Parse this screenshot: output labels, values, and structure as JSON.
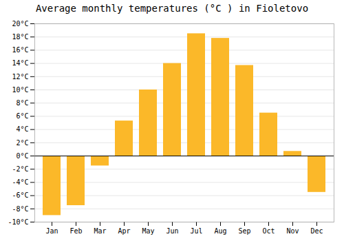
{
  "chart_data": {
    "type": "bar",
    "title": "Average monthly temperatures (°C ) in Fioletovo",
    "categories": [
      "Jan",
      "Feb",
      "Mar",
      "Apr",
      "May",
      "Jun",
      "Jul",
      "Aug",
      "Sep",
      "Oct",
      "Nov",
      "Dec"
    ],
    "values": [
      -9,
      -7.5,
      -1.5,
      5.3,
      10,
      14,
      18.5,
      17.8,
      13.7,
      6.5,
      0.7,
      -5.5
    ],
    "color": "#FBB829",
    "ylim": [
      -10,
      20
    ],
    "yticks": [
      {
        "value": -10,
        "label": "-10°C"
      },
      {
        "value": -8,
        "label": "-8°C"
      },
      {
        "value": -6,
        "label": "-6°C"
      },
      {
        "value": -4,
        "label": "-4°C"
      },
      {
        "value": -2,
        "label": "-2°C"
      },
      {
        "value": 0,
        "label": "0°C"
      },
      {
        "value": 2,
        "label": "2°C"
      },
      {
        "value": 4,
        "label": "4°C"
      },
      {
        "value": 6,
        "label": "6°C"
      },
      {
        "value": 8,
        "label": "8°C"
      },
      {
        "value": 10,
        "label": "10°C"
      },
      {
        "value": 12,
        "label": "12°C"
      },
      {
        "value": 14,
        "label": "14°C"
      },
      {
        "value": 16,
        "label": "16°C"
      },
      {
        "value": 18,
        "label": "18°C"
      },
      {
        "value": 20,
        "label": "20°C"
      }
    ],
    "grid": true
  }
}
